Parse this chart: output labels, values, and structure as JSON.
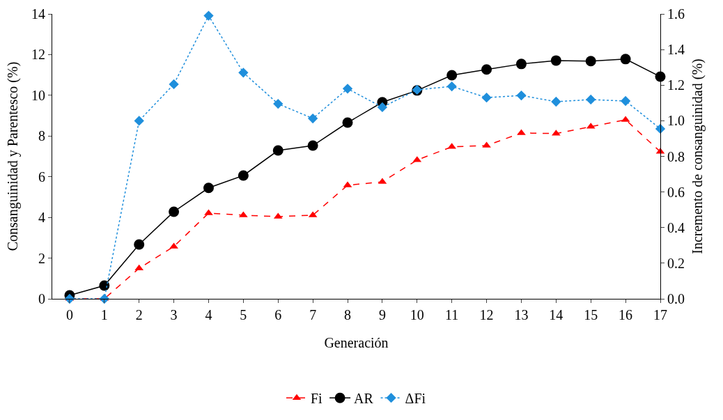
{
  "chart_data": {
    "type": "line",
    "xlabel": "Generación",
    "ylabel": "Consanguinidad y Parentesco (%)",
    "y2label": "Incremento de consanguinidad (%)",
    "x": [
      0,
      1,
      2,
      3,
      4,
      5,
      6,
      7,
      8,
      9,
      10,
      11,
      12,
      13,
      14,
      15,
      16,
      17
    ],
    "xlim": [
      -0.5,
      17
    ],
    "xticks": [
      0,
      1,
      2,
      3,
      4,
      5,
      6,
      7,
      8,
      9,
      10,
      11,
      12,
      13,
      14,
      15,
      16,
      17
    ],
    "ylim": [
      0,
      14
    ],
    "yticks": [
      0,
      2,
      4,
      6,
      8,
      10,
      12,
      14
    ],
    "y2lim": [
      0,
      1.6
    ],
    "y2ticks": [
      {
        "value": 0,
        "label": "0.0"
      },
      {
        "value": 0.2,
        "label": "0.2"
      },
      {
        "value": 0.4,
        "label": "0.4"
      },
      {
        "value": 0.6,
        "label": "0.6"
      },
      {
        "value": 0.8,
        "label": "0.8"
      },
      {
        "value": 1.0,
        "label": "1.0"
      },
      {
        "value": 1.2,
        "label": "1.2"
      },
      {
        "value": 1.4,
        "label": "1.4"
      },
      {
        "value": 1.6,
        "label": "1.6"
      }
    ],
    "grid": false,
    "legend": "bottom",
    "series": [
      {
        "name": "Fi",
        "color": "#ff0000",
        "marker": "triangle",
        "line_style": "dashed",
        "values": [
          0,
          0,
          1.5,
          2.57,
          4.21,
          4.11,
          4.04,
          4.11,
          5.58,
          5.75,
          6.82,
          7.47,
          7.53,
          8.15,
          8.12,
          8.46,
          8.8,
          7.23
        ]
      },
      {
        "name": "AR",
        "color": "#000000",
        "marker": "circle",
        "line_style": "solid",
        "values": [
          0.17,
          0.65,
          2.67,
          4.28,
          5.45,
          6.06,
          7.29,
          7.53,
          8.66,
          9.66,
          10.24,
          10.99,
          11.27,
          11.54,
          11.71,
          11.68,
          11.78,
          10.92
        ]
      },
      {
        "name": "ΔFi",
        "color": "#1f8fdc",
        "marker": "diamond",
        "line_style": "dotted",
        "axis": "y2",
        "values": [
          0,
          0,
          1.0,
          1.205,
          1.59,
          1.27,
          1.095,
          1.013,
          1.18,
          1.076,
          1.174,
          1.193,
          1.13,
          1.142,
          1.107,
          1.119,
          1.111,
          0.955
        ]
      }
    ]
  }
}
